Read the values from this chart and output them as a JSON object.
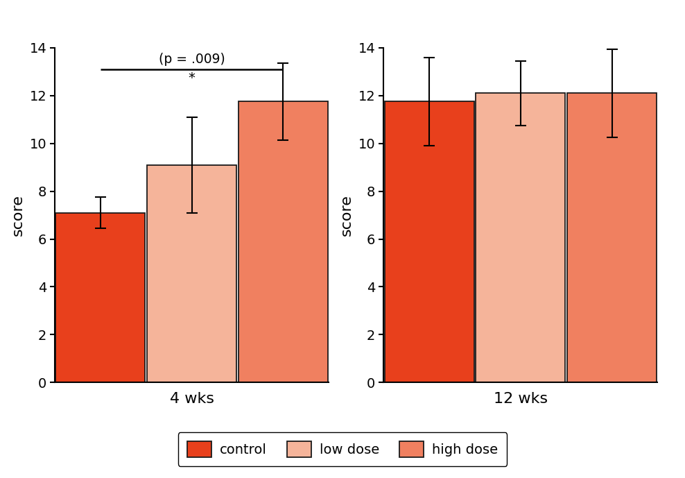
{
  "groups": [
    "4 wks",
    "12 wks"
  ],
  "categories": [
    "control",
    "low dose",
    "high dose"
  ],
  "values": {
    "4 wks": [
      7.1,
      9.1,
      11.75
    ],
    "12 wks": [
      11.75,
      12.1,
      12.1
    ]
  },
  "errors": {
    "4 wks": [
      0.65,
      2.0,
      1.6
    ],
    "12 wks": [
      1.85,
      1.35,
      1.85
    ]
  },
  "bar_colors": [
    "#e8401c",
    "#f5b49a",
    "#f08060"
  ],
  "bar_edge_color": "#1a1a1a",
  "ylabel": "score",
  "ylim": [
    0,
    14
  ],
  "yticks": [
    0,
    2,
    4,
    6,
    8,
    10,
    12,
    14
  ],
  "significance_text": "(p = .009)",
  "significance_star": "*",
  "legend_labels": [
    "control",
    "low dose",
    "high dose"
  ],
  "bar_width": 0.98,
  "figure_bg": "#ffffff",
  "tick_fontsize": 14,
  "label_fontsize": 16,
  "xlabel_fontsize": 16
}
